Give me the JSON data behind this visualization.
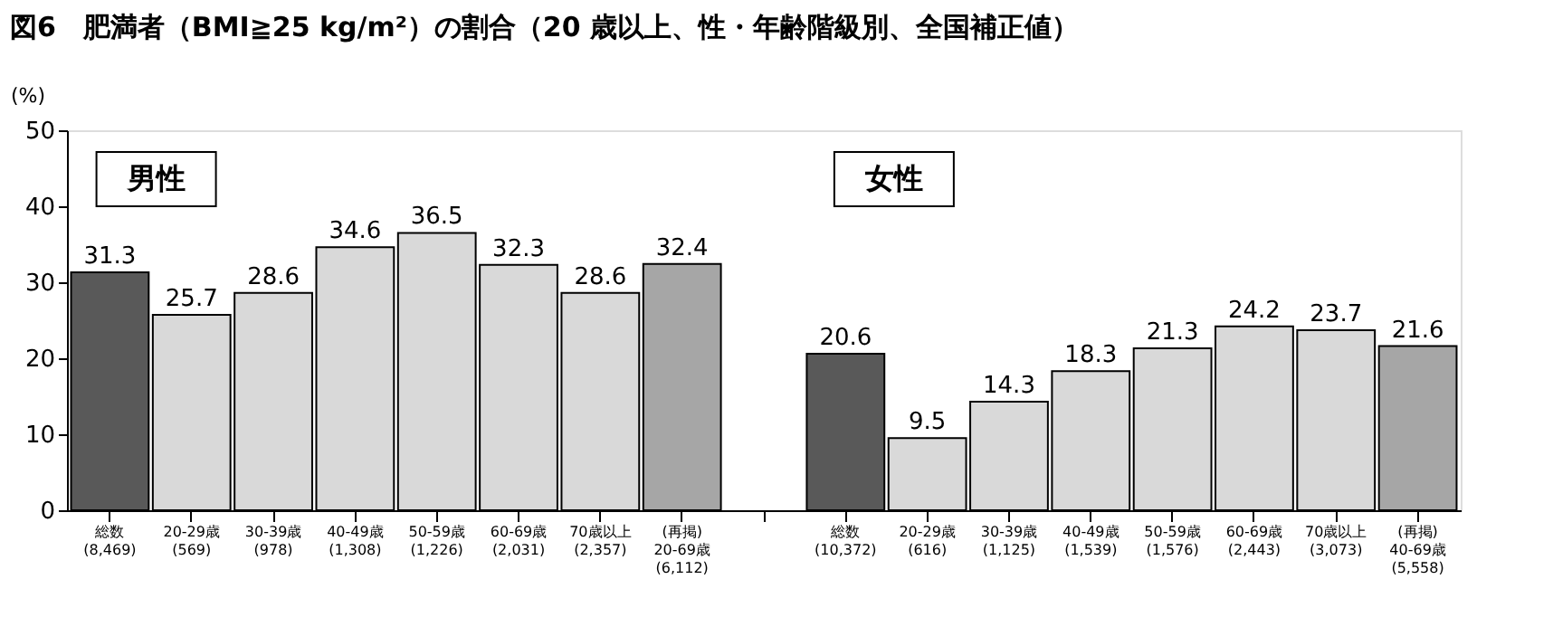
{
  "chart_data": {
    "type": "bar",
    "title": "図6　肥満者（BMI≧25 kg/m²）の割合（20 歳以上、性・年齢階級別、全国補正値）",
    "ylabel": "(%)",
    "categories": [
      "総数\n(8,469)",
      "20-29歳\n(569)",
      "30-39歳\n(978)",
      "40-49歳\n(1,308)",
      "50-59歳\n(1,226)",
      "60-69歳\n(2,031)",
      "70歳以上\n(2,357)",
      "(再掲)\n20-69歳\n(6,112)",
      null,
      "総数\n(10,372)",
      "20-29歳\n(616)",
      "30-39歳\n(1,125)",
      "40-49歳\n(1,539)",
      "50-59歳\n(1,576)",
      "60-69歳\n(2,443)",
      "70歳以上\n(3,073)",
      "(再掲)\n40-69歳\n(5,558)"
    ],
    "values": [
      31.3,
      25.7,
      28.6,
      34.6,
      36.5,
      32.3,
      28.6,
      32.4,
      null,
      20.6,
      9.5,
      14.3,
      18.3,
      21.3,
      24.2,
      23.7,
      21.6
    ],
    "colors": [
      "#595959",
      "#d9d9d9",
      "#d9d9d9",
      "#d9d9d9",
      "#d9d9d9",
      "#d9d9d9",
      "#d9d9d9",
      "#a6a6a6",
      "#d9d9d9",
      "#595959",
      "#d9d9d9",
      "#d9d9d9",
      "#d9d9d9",
      "#d9d9d9",
      "#d9d9d9",
      "#d9d9d9",
      "#a6a6a6"
    ],
    "ylim": [
      0,
      50
    ],
    "yticks": [
      0,
      10,
      20,
      30,
      40,
      50
    ],
    "grid": false,
    "data_labels": true,
    "annotations": [
      "男性",
      "女性"
    ]
  }
}
